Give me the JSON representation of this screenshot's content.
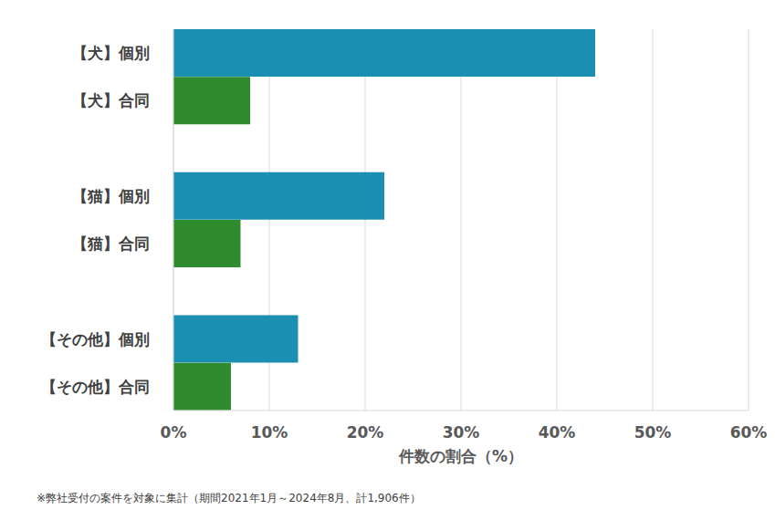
{
  "chart_data": {
    "type": "bar",
    "orientation": "horizontal",
    "categories": [
      "【犬】個別",
      "【犬】合同",
      null,
      "【猫】個別",
      "【猫】合同",
      null,
      "【その他】個別",
      "【その他】合同"
    ],
    "values": [
      44,
      8,
      null,
      22,
      7,
      null,
      13,
      6
    ],
    "colors": [
      "#1a8fb1",
      "#2e8b2e",
      null,
      "#1a8fb1",
      "#2e8b2e",
      null,
      "#1a8fb1",
      "#2e8b2e"
    ],
    "xlabel": "件数の割合（%）",
    "xlim": [
      0,
      60
    ],
    "xticks": [
      {
        "value": 0,
        "label": "0%"
      },
      {
        "value": 10,
        "label": "10%"
      },
      {
        "value": 20,
        "label": "20%"
      },
      {
        "value": 30,
        "label": "30%"
      },
      {
        "value": 40,
        "label": "40%"
      },
      {
        "value": 50,
        "label": "50%"
      },
      {
        "value": 60,
        "label": "60%"
      }
    ],
    "grid": true,
    "annotations": [
      "※弊社受付の案件を対象に集計（期間2021年1月～2024年8月、計1,906件）"
    ]
  }
}
